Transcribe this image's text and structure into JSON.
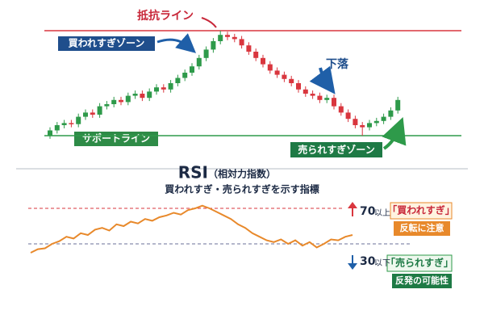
{
  "price_panel": {
    "resistance_label": "抵抗ライン",
    "support_label": "サポートライン",
    "overbought_zone": "買われすぎゾーン",
    "oversold_zone": "売られすぎゾーン",
    "drop_label": "下落",
    "resistance": 100,
    "support": 0,
    "up_color": "#2e9a4a",
    "down_color": "#d9363e",
    "candles": [
      [
        0,
        5,
        8,
        -3
      ],
      [
        5,
        10,
        13,
        2
      ],
      [
        10,
        12,
        15,
        7
      ],
      [
        12,
        11,
        15,
        8
      ],
      [
        11,
        18,
        21,
        8
      ],
      [
        18,
        22,
        25,
        15
      ],
      [
        22,
        20,
        25,
        17
      ],
      [
        20,
        28,
        31,
        17
      ],
      [
        28,
        30,
        33,
        25
      ],
      [
        30,
        34,
        37,
        27
      ],
      [
        34,
        32,
        37,
        29
      ],
      [
        32,
        38,
        41,
        29
      ],
      [
        38,
        40,
        43,
        35
      ],
      [
        40,
        36,
        43,
        33
      ],
      [
        36,
        42,
        45,
        33
      ],
      [
        42,
        46,
        49,
        39
      ],
      [
        46,
        44,
        49,
        41
      ],
      [
        44,
        50,
        53,
        41
      ],
      [
        50,
        55,
        58,
        47
      ],
      [
        55,
        60,
        63,
        52
      ],
      [
        60,
        66,
        69,
        57
      ],
      [
        66,
        74,
        77,
        63
      ],
      [
        74,
        82,
        85,
        71
      ],
      [
        82,
        90,
        93,
        79
      ],
      [
        90,
        96,
        100,
        87
      ],
      [
        96,
        94,
        99,
        91
      ],
      [
        94,
        92,
        97,
        89
      ],
      [
        92,
        86,
        95,
        83
      ],
      [
        86,
        80,
        89,
        77
      ],
      [
        80,
        74,
        83,
        71
      ],
      [
        74,
        68,
        77,
        65
      ],
      [
        68,
        62,
        71,
        59
      ],
      [
        62,
        58,
        65,
        55
      ],
      [
        58,
        54,
        61,
        51
      ],
      [
        54,
        50,
        57,
        47
      ],
      [
        50,
        44,
        53,
        41
      ],
      [
        44,
        40,
        47,
        37
      ],
      [
        40,
        38,
        43,
        35
      ],
      [
        38,
        34,
        41,
        31
      ],
      [
        34,
        36,
        39,
        31
      ],
      [
        36,
        28,
        39,
        25
      ],
      [
        28,
        22,
        31,
        19
      ],
      [
        22,
        16,
        25,
        13
      ],
      [
        16,
        10,
        19,
        7
      ],
      [
        10,
        8,
        13,
        0
      ],
      [
        8,
        12,
        15,
        5
      ],
      [
        12,
        14,
        17,
        9
      ],
      [
        14,
        18,
        21,
        11
      ],
      [
        18,
        24,
        27,
        15
      ],
      [
        24,
        34,
        37,
        21
      ]
    ]
  },
  "rsi_panel": {
    "title": "RSI",
    "title_note": "（相対力指数）",
    "subtitle": "買われすぎ・売られすぎを示す指標",
    "ylim": [
      0,
      100
    ],
    "color": "#e8892b",
    "upper": {
      "value": 70,
      "suffix": "以上",
      "badge": "「買われすぎ」",
      "note": "反転に注意"
    },
    "lower": {
      "value": 30,
      "suffix": "以下",
      "badge": "「売られすぎ」",
      "note": "反発の可能性"
    },
    "values": [
      20,
      24,
      25,
      30,
      33,
      38,
      36,
      42,
      40,
      46,
      48,
      45,
      52,
      50,
      55,
      53,
      58,
      56,
      60,
      62,
      65,
      63,
      68,
      70,
      73,
      70,
      66,
      62,
      58,
      52,
      48,
      42,
      38,
      34,
      32,
      35,
      30,
      34,
      28,
      32,
      26,
      30,
      35,
      34,
      38,
      40
    ]
  }
}
